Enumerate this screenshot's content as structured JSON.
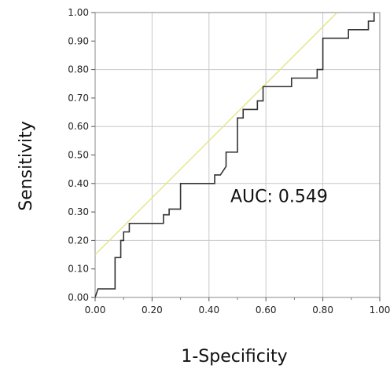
{
  "chart_data": {
    "type": "line",
    "xlabel": "1-Specificity",
    "ylabel": "Sensitivity",
    "xlim": [
      0,
      1
    ],
    "ylim": [
      0,
      1
    ],
    "x_ticks": [
      "0.00",
      "0.20",
      "0.40",
      "0.60",
      "0.80",
      "1.00"
    ],
    "y_ticks": [
      "0.00",
      "0.10",
      "0.20",
      "0.30",
      "0.40",
      "0.50",
      "0.60",
      "0.70",
      "0.80",
      "0.90",
      "1.00"
    ],
    "grid": true,
    "annotation": "AUC: 0.549",
    "series": [
      {
        "color": "#333333",
        "points": [
          [
            0.0,
            0.0
          ],
          [
            0.01,
            0.03
          ],
          [
            0.07,
            0.03
          ],
          [
            0.07,
            0.14
          ],
          [
            0.09,
            0.14
          ],
          [
            0.09,
            0.2
          ],
          [
            0.1,
            0.2
          ],
          [
            0.1,
            0.23
          ],
          [
            0.12,
            0.23
          ],
          [
            0.12,
            0.26
          ],
          [
            0.24,
            0.26
          ],
          [
            0.24,
            0.29
          ],
          [
            0.26,
            0.29
          ],
          [
            0.26,
            0.31
          ],
          [
            0.3,
            0.31
          ],
          [
            0.3,
            0.4
          ],
          [
            0.42,
            0.4
          ],
          [
            0.42,
            0.43
          ],
          [
            0.44,
            0.43
          ],
          [
            0.46,
            0.46
          ],
          [
            0.46,
            0.51
          ],
          [
            0.5,
            0.51
          ],
          [
            0.5,
            0.63
          ],
          [
            0.52,
            0.63
          ],
          [
            0.52,
            0.66
          ],
          [
            0.57,
            0.66
          ],
          [
            0.57,
            0.69
          ],
          [
            0.59,
            0.69
          ],
          [
            0.59,
            0.74
          ],
          [
            0.69,
            0.74
          ],
          [
            0.69,
            0.77
          ],
          [
            0.78,
            0.77
          ],
          [
            0.78,
            0.8
          ],
          [
            0.8,
            0.8
          ],
          [
            0.8,
            0.91
          ],
          [
            0.89,
            0.91
          ],
          [
            0.89,
            0.94
          ],
          [
            0.96,
            0.94
          ],
          [
            0.96,
            0.97
          ],
          [
            0.98,
            0.97
          ],
          [
            0.98,
            1.0
          ]
        ]
      },
      {
        "color": "#e4e48a",
        "points": [
          [
            0.0,
            0.15
          ],
          [
            0.85,
            1.0
          ]
        ]
      }
    ]
  }
}
